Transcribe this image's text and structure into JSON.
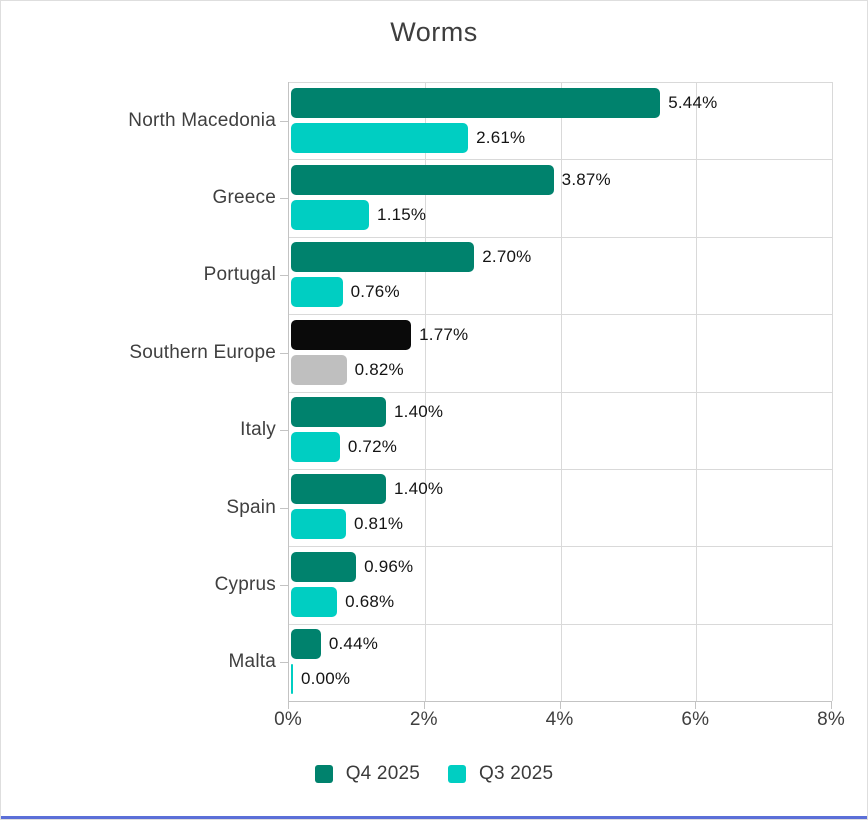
{
  "chart_data": {
    "type": "bar",
    "orientation": "horizontal",
    "title": "Worms",
    "categories": [
      "North Macedonia",
      "Greece",
      "Portugal",
      "Southern Europe",
      "Italy",
      "Spain",
      "Cyprus",
      "Malta"
    ],
    "series": [
      {
        "name": "Q4 2025",
        "color": "#00826D",
        "values": [
          5.44,
          3.87,
          2.7,
          1.77,
          1.4,
          1.4,
          0.96,
          0.44
        ],
        "labels": [
          "5.44%",
          "3.87%",
          "2.70%",
          "1.77%",
          "1.40%",
          "1.40%",
          "0.96%",
          "0.44%"
        ]
      },
      {
        "name": "Q3 2025",
        "color": "#00CEC2",
        "values": [
          2.61,
          1.15,
          0.76,
          0.82,
          0.72,
          0.81,
          0.68,
          0.0
        ],
        "labels": [
          "2.61%",
          "1.15%",
          "0.76%",
          "0.82%",
          "0.72%",
          "0.81%",
          "0.68%",
          "0.00%"
        ]
      }
    ],
    "highlight": {
      "category": "Southern Europe",
      "colors": [
        "#0A0A0A",
        "#BFBFBF"
      ]
    },
    "x_axis": {
      "tick_labels": [
        "0%",
        "2%",
        "4%",
        "6%",
        "8%"
      ],
      "tick_values": [
        0,
        2,
        4,
        6,
        8
      ],
      "min": 0,
      "max": 8
    },
    "legend": {
      "position": "bottom",
      "entries": [
        "Q4 2025",
        "Q3 2025"
      ]
    },
    "grid": true
  },
  "colors": {
    "axis_line": "#c3c3c3",
    "gridline": "#d9d9d9",
    "title_text": "#3e3e3e",
    "label_text": "#3f3f3f",
    "value_text": "#141414",
    "bottom_accent": "#5B6FD8",
    "canvas_border": "#dedede"
  }
}
